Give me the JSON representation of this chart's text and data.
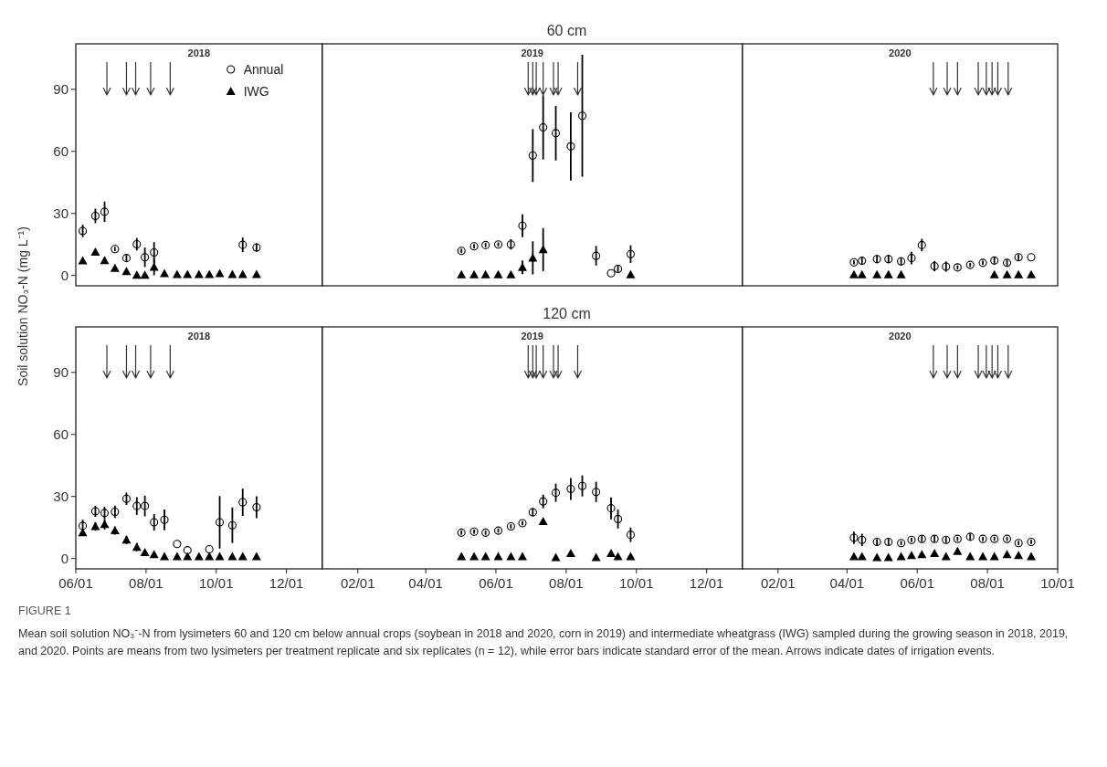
{
  "chart_data": [
    {
      "type": "scatter",
      "subtitle": "2018",
      "ylabel": "Soil solution NO₃-N  (mg L⁻¹)",
      "xlim": [
        "2018-06-01",
        "2019-01-01"
      ],
      "ylim": [
        -5,
        112
      ],
      "yticks": [
        0,
        30,
        60,
        90
      ],
      "tick_labels": "y",
      "legend": "top right",
      "ref_lines": [
        {
          "axis": "x",
          "value": "2018-06-28"
        },
        {
          "axis": "x",
          "value": "2018-07-15"
        },
        {
          "axis": "x",
          "value": "2018-07-23"
        },
        {
          "axis": "x",
          "value": "2018-08-05"
        },
        {
          "axis": "x",
          "value": "2018-08-22"
        }
      ],
      "series": [
        {
          "name": "Annual",
          "color": "#000000",
          "marker": "circle",
          "x": [
            "2018-06-07",
            "2018-06-18",
            "2018-06-26",
            "2018-07-05",
            "2018-07-15",
            "2018-07-24",
            "2018-07-31",
            "2018-08-08",
            "2018-10-24",
            "2018-11-05"
          ],
          "values": [
            21.5,
            28.8,
            30.8,
            12.8,
            8.4,
            15.1,
            8.8,
            11.1,
            14.8,
            13.5
          ],
          "errors": [
            3,
            3.5,
            4.9,
            1,
            1.5,
            3,
            4.7,
            5,
            3.5,
            2
          ]
        },
        {
          "name": "IWG",
          "color": "#000000",
          "marker": "triangle",
          "x": [
            "2018-06-07",
            "2018-06-18",
            "2018-06-26",
            "2018-07-05",
            "2018-07-15",
            "2018-07-24",
            "2018-07-31",
            "2018-08-08",
            "2018-08-17",
            "2018-08-28",
            "2018-09-06",
            "2018-09-16",
            "2018-09-25",
            "2018-10-04",
            "2018-10-15",
            "2018-10-24",
            "2018-11-05"
          ],
          "values": [
            7.1,
            11.3,
            7.3,
            3.5,
            2,
            0.2,
            0.2,
            4.1,
            1,
            0.5,
            0.5,
            0.5,
            0.5,
            1,
            0.5,
            0.5,
            0.5
          ],
          "errors": [
            1.5,
            1,
            1.5,
            0.5,
            0.5,
            null,
            null,
            4,
            null,
            null,
            null,
            null,
            null,
            null,
            null,
            null,
            null
          ]
        }
      ]
    },
    {
      "type": "scatter",
      "title": "60 cm",
      "subtitle": "2019",
      "xlim": [
        "2019-01-01",
        "2020-01-01"
      ],
      "ylim": [
        -5,
        112
      ],
      "tick_labels": false,
      "ref_lines": [
        {
          "axis": "x",
          "value": "2019-06-29"
        },
        {
          "axis": "x",
          "value": "2019-07-03"
        },
        {
          "axis": "x",
          "value": "2019-07-06"
        },
        {
          "axis": "x",
          "value": "2019-07-12"
        },
        {
          "axis": "x",
          "value": "2019-07-21"
        },
        {
          "axis": "x",
          "value": "2019-07-25"
        },
        {
          "axis": "x",
          "value": "2019-08-11"
        }
      ],
      "series": [
        {
          "color": "#000000",
          "marker": "circle",
          "x": [
            "2019-05-02",
            "2019-05-13",
            "2019-05-23",
            "2019-06-03",
            "2019-06-14",
            "2019-06-24",
            "2019-07-03",
            "2019-07-12",
            "2019-07-23",
            "2019-08-05",
            "2019-08-15",
            "2019-08-27",
            "2019-09-09",
            "2019-09-15",
            "2019-09-26"
          ],
          "values": [
            11.9,
            14.1,
            14.7,
            15,
            15,
            24,
            58,
            71.6,
            68.8,
            62.4,
            77.2,
            9.5,
            1.1,
            3.2,
            10.3
          ],
          "errors": [
            1,
            1,
            1,
            1,
            2.5,
            5.5,
            12.8,
            15.5,
            13.2,
            16.5,
            29.5,
            4.7,
            null,
            1.5,
            4.3
          ]
        },
        {
          "color": "#000000",
          "marker": "triangle",
          "x": [
            "2019-05-02",
            "2019-05-13",
            "2019-05-23",
            "2019-06-03",
            "2019-06-14",
            "2019-06-24",
            "2019-07-03",
            "2019-07-12",
            "2019-09-26"
          ],
          "values": [
            0.4,
            0.4,
            0.4,
            0.4,
            0.4,
            3.9,
            8.5,
            12.5,
            0.4
          ],
          "errors": [
            null,
            null,
            null,
            null,
            null,
            3.3,
            8,
            10.4,
            null
          ]
        }
      ]
    },
    {
      "type": "scatter",
      "subtitle": "2020",
      "xlim": [
        "2020-01-01",
        "2020-10-01"
      ],
      "ylim": [
        -5,
        112
      ],
      "tick_labels": false,
      "ref_lines": [
        {
          "axis": "x",
          "value": "2020-06-15"
        },
        {
          "axis": "x",
          "value": "2020-06-27"
        },
        {
          "axis": "x",
          "value": "2020-07-06"
        },
        {
          "axis": "x",
          "value": "2020-07-24"
        },
        {
          "axis": "x",
          "value": "2020-07-31"
        },
        {
          "axis": "x",
          "value": "2020-08-05"
        },
        {
          "axis": "x",
          "value": "2020-08-10"
        },
        {
          "axis": "x",
          "value": "2020-08-19"
        }
      ],
      "series": [
        {
          "color": "#000000",
          "marker": "circle",
          "x": [
            "2020-04-07",
            "2020-04-14",
            "2020-04-27",
            "2020-05-07",
            "2020-05-18",
            "2020-05-27",
            "2020-06-05",
            "2020-06-16",
            "2020-06-26",
            "2020-07-06",
            "2020-07-17",
            "2020-07-28",
            "2020-08-07",
            "2020-08-18",
            "2020-08-28",
            "2020-09-08"
          ],
          "values": [
            6.4,
            7.1,
            7.9,
            7.9,
            6.8,
            8.4,
            14.7,
            4.5,
            4.3,
            3.9,
            5.1,
            6.1,
            7.2,
            6.1,
            8.8,
            8.8
          ],
          "errors": [
            1,
            1.5,
            2,
            2,
            2,
            3,
            3,
            2.5,
            2.5,
            1,
            1,
            1,
            1.5,
            1.5,
            1.5,
            null
          ]
        },
        {
          "color": "#000000",
          "marker": "triangle",
          "x": [
            "2020-04-07",
            "2020-04-14",
            "2020-04-27",
            "2020-05-07",
            "2020-05-18",
            "2020-08-07",
            "2020-08-18",
            "2020-08-28",
            "2020-09-08"
          ],
          "values": [
            0.4,
            0.4,
            0.4,
            0.4,
            0.4,
            0.4,
            0.4,
            0.4,
            0.4
          ]
        }
      ]
    },
    {
      "type": "scatter",
      "subtitle": "2018",
      "xlim": [
        "2018-06-01",
        "2019-01-01"
      ],
      "ylim": [
        -5,
        112
      ],
      "yticks": [
        0,
        30,
        60,
        90
      ],
      "xticks": [
        {
          "value": "2018-06-01",
          "label": "06/01"
        },
        {
          "value": "2018-08-01",
          "label": "08/01"
        },
        {
          "value": "2018-10-01",
          "label": "10/01"
        },
        {
          "value": "2018-12-01",
          "label": "12/01"
        }
      ],
      "annotations": [
        "FIGURE 1",
        "Mean soil solution NO₃⁻-N from lysimeters 60 and 120 cm below annual crops (soybean in 2018 and 2020, corn in 2019) and intermediate wheatgrass (IWG) sampled during the growing season in 2018, 2019, and 2020. Points are means from two lysimeters per treatment replicate and six replicates (n = 12), while error bars indicate standard error of the mean. Arrows indicate dates of irrigation events."
      ],
      "ref_lines": [
        {
          "axis": "x",
          "value": "2018-06-28"
        },
        {
          "axis": "x",
          "value": "2018-07-15"
        },
        {
          "axis": "x",
          "value": "2018-07-23"
        },
        {
          "axis": "x",
          "value": "2018-08-05"
        },
        {
          "axis": "x",
          "value": "2018-08-22"
        }
      ],
      "series": [
        {
          "color": "#000000",
          "marker": "circle",
          "x": [
            "2018-06-07",
            "2018-06-18",
            "2018-06-26",
            "2018-07-05",
            "2018-07-15",
            "2018-07-24",
            "2018-07-31",
            "2018-08-08",
            "2018-08-17",
            "2018-08-28",
            "2018-09-06",
            "2018-09-25",
            "2018-10-04",
            "2018-10-15",
            "2018-10-24",
            "2018-11-05"
          ],
          "values": [
            15.8,
            22.8,
            22,
            22.6,
            28.9,
            25.4,
            25.4,
            17.5,
            18.7,
            7,
            4,
            4.5,
            17.5,
            16.1,
            27.2,
            24.8
          ],
          "errors": [
            3,
            2.6,
            3,
            3,
            3,
            4.3,
            5,
            4,
            5,
            null,
            null,
            null,
            12.7,
            8.6,
            6.6,
            5.3
          ]
        },
        {
          "color": "#000000",
          "marker": "triangle",
          "x": [
            "2018-06-07",
            "2018-06-18",
            "2018-06-26",
            "2018-07-05",
            "2018-07-15",
            "2018-07-24",
            "2018-07-31",
            "2018-08-08",
            "2018-08-17",
            "2018-08-28",
            "2018-09-06",
            "2018-09-16",
            "2018-09-25",
            "2018-10-04",
            "2018-10-15",
            "2018-10-24",
            "2018-11-05"
          ],
          "values": [
            12.5,
            15.5,
            16.5,
            13.5,
            9,
            5.5,
            3,
            2,
            1,
            1,
            1,
            1,
            1,
            1,
            1,
            1,
            1
          ],
          "errors": [
            null,
            2,
            2.5,
            2,
            2,
            2,
            null,
            null,
            null,
            null,
            null,
            null,
            null,
            null,
            null,
            null,
            null
          ]
        }
      ]
    },
    {
      "type": "scatter",
      "title": "120 cm",
      "subtitle": "2019",
      "xlim": [
        "2019-01-01",
        "2020-01-01"
      ],
      "ylim": [
        -5,
        112
      ],
      "tick_labels": "x",
      "xticks": [
        {
          "value": "2019-02-01",
          "label": "02/01"
        },
        {
          "value": "2019-04-01",
          "label": "04/01"
        },
        {
          "value": "2019-06-01",
          "label": "06/01"
        },
        {
          "value": "2019-08-01",
          "label": "08/01"
        },
        {
          "value": "2019-10-01",
          "label": "10/01"
        },
        {
          "value": "2019-12-01",
          "label": "12/01"
        }
      ],
      "ref_lines": [
        {
          "axis": "x",
          "value": "2019-06-29"
        },
        {
          "axis": "x",
          "value": "2019-07-03"
        },
        {
          "axis": "x",
          "value": "2019-07-06"
        },
        {
          "axis": "x",
          "value": "2019-07-12"
        },
        {
          "axis": "x",
          "value": "2019-07-21"
        },
        {
          "axis": "x",
          "value": "2019-07-25"
        },
        {
          "axis": "x",
          "value": "2019-08-11"
        }
      ],
      "series": [
        {
          "color": "#000000",
          "marker": "circle",
          "x": [
            "2019-05-02",
            "2019-05-13",
            "2019-05-23",
            "2019-06-03",
            "2019-06-14",
            "2019-06-24",
            "2019-07-03",
            "2019-07-12",
            "2019-07-23",
            "2019-08-05",
            "2019-08-15",
            "2019-08-27",
            "2019-09-09",
            "2019-09-15",
            "2019-09-26"
          ],
          "values": [
            12.5,
            13,
            12.5,
            13.5,
            15.5,
            17.1,
            22.4,
            27.6,
            31.8,
            33.6,
            35.1,
            32.2,
            24.3,
            19.1,
            11.5
          ],
          "errors": [
            1,
            1,
            1,
            1,
            1,
            1,
            2,
            3.3,
            4.4,
            5.3,
            5.1,
            4.9,
            5.3,
            4.6,
            3.5
          ]
        },
        {
          "color": "#000000",
          "marker": "triangle",
          "x": [
            "2019-05-02",
            "2019-05-13",
            "2019-05-23",
            "2019-06-03",
            "2019-06-14",
            "2019-06-24",
            "2019-07-12",
            "2019-07-23",
            "2019-08-05",
            "2019-08-27",
            "2019-09-09",
            "2019-09-15",
            "2019-09-26"
          ],
          "values": [
            1,
            1,
            1,
            1,
            1,
            1,
            18,
            0.5,
            2.5,
            0.5,
            2.5,
            1,
            1
          ]
        }
      ]
    },
    {
      "type": "scatter",
      "subtitle": "2020",
      "xlim": [
        "2020-01-01",
        "2020-10-01"
      ],
      "ylim": [
        -5,
        112
      ],
      "tick_labels": "x",
      "xticks": [
        {
          "value": "2020-02-01",
          "label": "02/01"
        },
        {
          "value": "2020-04-01",
          "label": "04/01"
        },
        {
          "value": "2020-06-01",
          "label": "06/01"
        },
        {
          "value": "2020-08-01",
          "label": "08/01"
        },
        {
          "value": "2020-10-01",
          "label": "10/01"
        }
      ],
      "ref_lines": [
        {
          "axis": "x",
          "value": "2020-06-15"
        },
        {
          "axis": "x",
          "value": "2020-06-27"
        },
        {
          "axis": "x",
          "value": "2020-07-06"
        },
        {
          "axis": "x",
          "value": "2020-07-24"
        },
        {
          "axis": "x",
          "value": "2020-07-31"
        },
        {
          "axis": "x",
          "value": "2020-08-05"
        },
        {
          "axis": "x",
          "value": "2020-08-10"
        },
        {
          "axis": "x",
          "value": "2020-08-19"
        }
      ],
      "series": [
        {
          "color": "#000000",
          "marker": "circle",
          "x": [
            "2020-04-07",
            "2020-04-14",
            "2020-04-27",
            "2020-05-07",
            "2020-05-18",
            "2020-05-27",
            "2020-06-05",
            "2020-06-16",
            "2020-06-26",
            "2020-07-06",
            "2020-07-17",
            "2020-07-28",
            "2020-08-07",
            "2020-08-18",
            "2020-08-28",
            "2020-09-08"
          ],
          "values": [
            10,
            9,
            8,
            8,
            7.5,
            9,
            9.5,
            9.5,
            9,
            9.5,
            10.5,
            9.5,
            9.5,
            9.5,
            7.5,
            8
          ],
          "errors": [
            3,
            3,
            1.5,
            1.5,
            1,
            1,
            1.5,
            1.5,
            1.5,
            1,
            1.5,
            1,
            1,
            1,
            1,
            1
          ]
        },
        {
          "color": "#000000",
          "marker": "triangle",
          "x": [
            "2020-04-07",
            "2020-04-14",
            "2020-04-27",
            "2020-05-07",
            "2020-05-18",
            "2020-05-27",
            "2020-06-05",
            "2020-06-16",
            "2020-06-26",
            "2020-07-06",
            "2020-07-17",
            "2020-07-28",
            "2020-08-07",
            "2020-08-18",
            "2020-08-28",
            "2020-09-08"
          ],
          "values": [
            1,
            1,
            0.5,
            0.5,
            1,
            1.5,
            2,
            2.5,
            1,
            3.5,
            1,
            1,
            1,
            2,
            1.5,
            1
          ],
          "errors": [
            null,
            null,
            null,
            null,
            null,
            null,
            null,
            1,
            null,
            1.5,
            null,
            null,
            null,
            null,
            null,
            null
          ]
        }
      ]
    }
  ]
}
